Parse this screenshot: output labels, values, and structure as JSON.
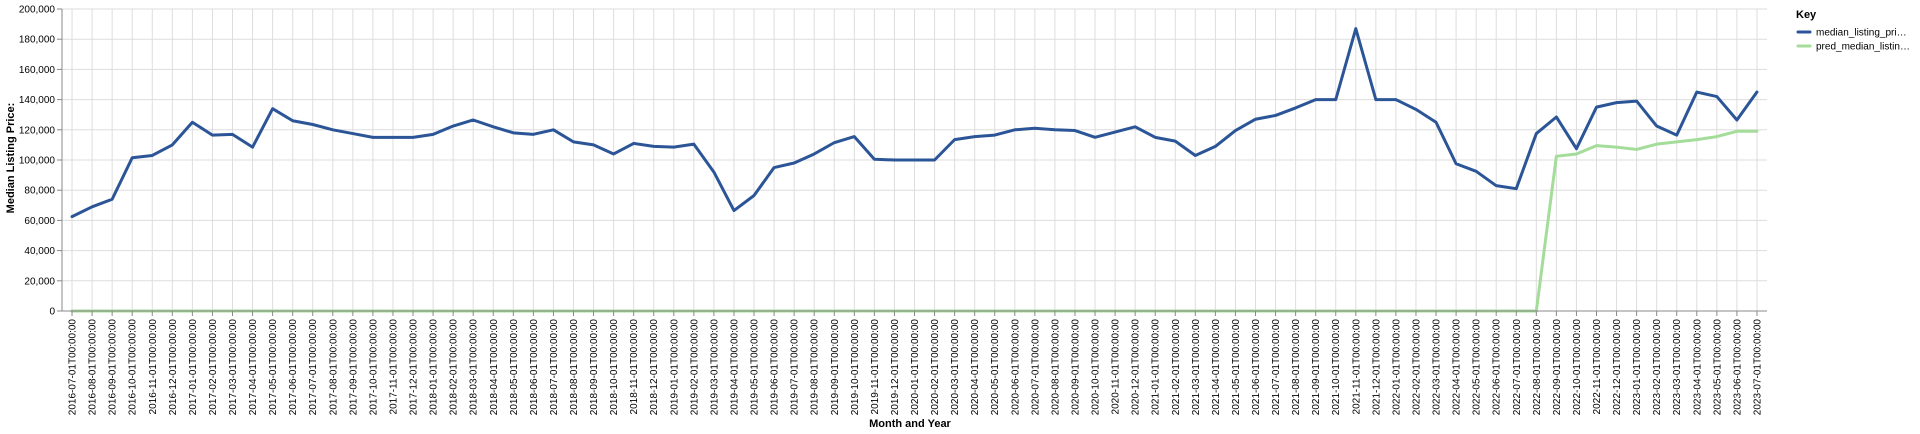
{
  "chart_data": {
    "type": "line",
    "title": "",
    "xlabel": "Month and Year",
    "ylabel": "Median Listing Price:",
    "ylim": [
      0,
      200000
    ],
    "y_ticks": [
      0,
      20000,
      40000,
      60000,
      80000,
      100000,
      120000,
      140000,
      160000,
      180000,
      200000
    ],
    "y_tick_labels": [
      "0",
      "20,000",
      "40,000",
      "60,000",
      "80,000",
      "100,000",
      "120,000",
      "140,000",
      "160,000",
      "180,000",
      "200,000"
    ],
    "grid": true,
    "legend": {
      "title": "Key",
      "placement": "top-right",
      "labels": [
        "median_listing_pri…",
        "pred_median_listin…"
      ]
    },
    "categories": [
      "2016-07-01T00:00:00",
      "2016-08-01T00:00:00",
      "2016-09-01T00:00:00",
      "2016-10-01T00:00:00",
      "2016-11-01T00:00:00",
      "2016-12-01T00:00:00",
      "2017-01-01T00:00:00",
      "2017-02-01T00:00:00",
      "2017-03-01T00:00:00",
      "2017-04-01T00:00:00",
      "2017-05-01T00:00:00",
      "2017-06-01T00:00:00",
      "2017-07-01T00:00:00",
      "2017-08-01T00:00:00",
      "2017-09-01T00:00:00",
      "2017-10-01T00:00:00",
      "2017-11-01T00:00:00",
      "2017-12-01T00:00:00",
      "2018-01-01T00:00:00",
      "2018-02-01T00:00:00",
      "2018-03-01T00:00:00",
      "2018-04-01T00:00:00",
      "2018-05-01T00:00:00",
      "2018-06-01T00:00:00",
      "2018-07-01T00:00:00",
      "2018-08-01T00:00:00",
      "2018-09-01T00:00:00",
      "2018-10-01T00:00:00",
      "2018-11-01T00:00:00",
      "2018-12-01T00:00:00",
      "2019-01-01T00:00:00",
      "2019-02-01T00:00:00",
      "2019-03-01T00:00:00",
      "2019-04-01T00:00:00",
      "2019-05-01T00:00:00",
      "2019-06-01T00:00:00",
      "2019-07-01T00:00:00",
      "2019-08-01T00:00:00",
      "2019-09-01T00:00:00",
      "2019-10-01T00:00:00",
      "2019-11-01T00:00:00",
      "2019-12-01T00:00:00",
      "2020-01-01T00:00:00",
      "2020-02-01T00:00:00",
      "2020-03-01T00:00:00",
      "2020-04-01T00:00:00",
      "2020-05-01T00:00:00",
      "2020-06-01T00:00:00",
      "2020-07-01T00:00:00",
      "2020-08-01T00:00:00",
      "2020-09-01T00:00:00",
      "2020-10-01T00:00:00",
      "2020-11-01T00:00:00",
      "2020-12-01T00:00:00",
      "2021-01-01T00:00:00",
      "2021-02-01T00:00:00",
      "2021-03-01T00:00:00",
      "2021-04-01T00:00:00",
      "2021-05-01T00:00:00",
      "2021-06-01T00:00:00",
      "2021-07-01T00:00:00",
      "2021-08-01T00:00:00",
      "2021-09-01T00:00:00",
      "2021-10-01T00:00:00",
      "2021-11-01T00:00:00",
      "2021-12-01T00:00:00",
      "2022-01-01T00:00:00",
      "2022-02-01T00:00:00",
      "2022-03-01T00:00:00",
      "2022-04-01T00:00:00",
      "2022-05-01T00:00:00",
      "2022-06-01T00:00:00",
      "2022-07-01T00:00:00",
      "2022-08-01T00:00:00",
      "2022-09-01T00:00:00",
      "2022-10-01T00:00:00",
      "2022-11-01T00:00:00",
      "2022-12-01T00:00:00",
      "2023-01-01T00:00:00",
      "2023-02-01T00:00:00",
      "2023-03-01T00:00:00",
      "2023-04-01T00:00:00",
      "2023-05-01T00:00:00",
      "2023-06-01T00:00:00",
      "2023-07-01T00:00:00"
    ],
    "series": [
      {
        "name": "median_listing_pri…",
        "color": "#2b5597",
        "values": [
          62500,
          69000,
          74000,
          101500,
          103000,
          110000,
          125000,
          116500,
          117000,
          108500,
          134000,
          126000,
          123500,
          120000,
          117500,
          115000,
          115000,
          115000,
          117000,
          122500,
          126500,
          122000,
          118000,
          117000,
          120000,
          112000,
          110000,
          104000,
          111000,
          109000,
          108500,
          110500,
          92000,
          66500,
          76500,
          95000,
          98000,
          104000,
          111500,
          115500,
          100500,
          100000,
          100000,
          100000,
          113500,
          115500,
          116500,
          120000,
          121000,
          120000,
          119500,
          115000,
          118500,
          122000,
          115000,
          112500,
          103000,
          109000,
          119500,
          127000,
          129500,
          134500,
          140000,
          140000,
          187000,
          140000,
          140000,
          133500,
          125000,
          97500,
          92500,
          83000,
          81000,
          117500,
          128500,
          107500,
          135000,
          138000,
          139000,
          122500,
          116500,
          145000,
          142000,
          126500,
          145000
        ]
      },
      {
        "name": "pred_median_listin…",
        "color": "#a4dc9a",
        "values": [
          0,
          0,
          0,
          0,
          0,
          0,
          0,
          0,
          0,
          0,
          0,
          0,
          0,
          0,
          0,
          0,
          0,
          0,
          0,
          0,
          0,
          0,
          0,
          0,
          0,
          0,
          0,
          0,
          0,
          0,
          0,
          0,
          0,
          0,
          0,
          0,
          0,
          0,
          0,
          0,
          0,
          0,
          0,
          0,
          0,
          0,
          0,
          0,
          0,
          0,
          0,
          0,
          0,
          0,
          0,
          0,
          0,
          0,
          0,
          0,
          0,
          0,
          0,
          0,
          0,
          0,
          0,
          0,
          0,
          0,
          0,
          0,
          0,
          0,
          102500,
          104000,
          109500,
          108500,
          107000,
          110500,
          112000,
          113500,
          115500,
          119000,
          119000
        ]
      }
    ]
  }
}
